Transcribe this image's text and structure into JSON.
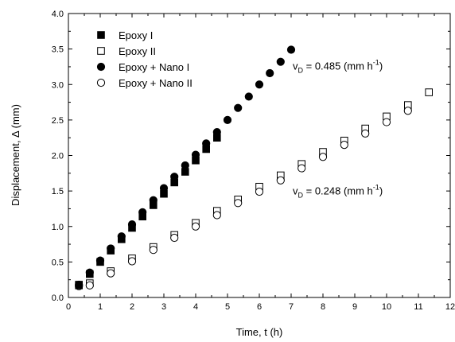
{
  "chart_data": {
    "type": "scatter",
    "title": "",
    "xlabel": "Time, t (h)",
    "ylabel": "Displacement, Δ (mm)",
    "xlim": [
      0,
      12
    ],
    "ylim": [
      0.0,
      4.0
    ],
    "x_ticks": [
      0,
      1,
      2,
      3,
      4,
      5,
      6,
      7,
      8,
      9,
      10,
      11,
      12
    ],
    "x_tick_labels": [
      "0",
      "1",
      "2",
      "3",
      "4",
      "5",
      "6",
      "7",
      "8",
      "9",
      "10",
      "11",
      "12"
    ],
    "y_ticks": [
      0.0,
      0.5,
      1.0,
      1.5,
      2.0,
      2.5,
      3.0,
      3.5,
      4.0
    ],
    "y_tick_labels": [
      "0.0",
      "0.5",
      "1.0",
      "1.5",
      "2.0",
      "2.5",
      "3.0",
      "3.5",
      "4.0"
    ],
    "grid": false,
    "legend_position": "top-left",
    "series": [
      {
        "name": "Epoxy I",
        "marker": "square-filled",
        "x": [
          0.33,
          0.67,
          1.0,
          1.33,
          1.67,
          2.0,
          2.33,
          2.67,
          3.0,
          3.33,
          3.67,
          4.0,
          4.33,
          4.67
        ],
        "y": [
          0.17,
          0.33,
          0.5,
          0.66,
          0.82,
          0.98,
          1.14,
          1.3,
          1.46,
          1.62,
          1.77,
          1.93,
          2.09,
          2.25
        ]
      },
      {
        "name": "Epoxy II",
        "marker": "square-open",
        "x": [
          0.33,
          0.67,
          1.33,
          2.0,
          2.67,
          3.33,
          4.0,
          4.67,
          5.33,
          6.0,
          6.67,
          7.33,
          8.0,
          8.67,
          9.33,
          10.0,
          10.67,
          11.33
        ],
        "y": [
          0.18,
          0.2,
          0.37,
          0.55,
          0.71,
          0.88,
          1.05,
          1.22,
          1.38,
          1.56,
          1.72,
          1.88,
          2.05,
          2.21,
          2.38,
          2.55,
          2.71,
          2.89
        ]
      },
      {
        "name": "Epoxy + Nano I",
        "marker": "circle-filled",
        "x": [
          0.33,
          0.67,
          1.0,
          1.33,
          1.67,
          2.0,
          2.33,
          2.67,
          3.0,
          3.33,
          3.67,
          4.0,
          4.33,
          4.67,
          5.0,
          5.33,
          5.67,
          6.0,
          6.33,
          6.67,
          7.0
        ],
        "y": [
          0.18,
          0.35,
          0.52,
          0.69,
          0.86,
          1.03,
          1.2,
          1.37,
          1.54,
          1.7,
          1.86,
          2.01,
          2.17,
          2.33,
          2.5,
          2.67,
          2.83,
          3.0,
          3.16,
          3.32,
          3.49
        ]
      },
      {
        "name": "Epoxy + Nano II",
        "marker": "circle-open",
        "x": [
          0.33,
          0.67,
          1.33,
          2.0,
          2.67,
          3.33,
          4.0,
          4.67,
          5.33,
          6.0,
          6.67,
          7.33,
          8.0,
          8.67,
          9.33,
          10.0,
          10.67
        ],
        "y": [
          0.16,
          0.17,
          0.34,
          0.51,
          0.67,
          0.84,
          1.0,
          1.16,
          1.33,
          1.49,
          1.65,
          1.82,
          1.98,
          2.15,
          2.31,
          2.47,
          2.63
        ]
      }
    ],
    "annotations": [
      {
        "id": "upper-rate",
        "var": "v",
        "sub": "D",
        "body": " = 0.485 (mm h",
        "sup": "-1",
        "tail": ")",
        "at": [
          7.05,
          3.21
        ]
      },
      {
        "id": "lower-rate",
        "var": "v",
        "sub": "D",
        "body": " = 0.248 (mm h",
        "sup": "-1",
        "tail": ")",
        "at": [
          7.05,
          1.45
        ]
      }
    ]
  }
}
